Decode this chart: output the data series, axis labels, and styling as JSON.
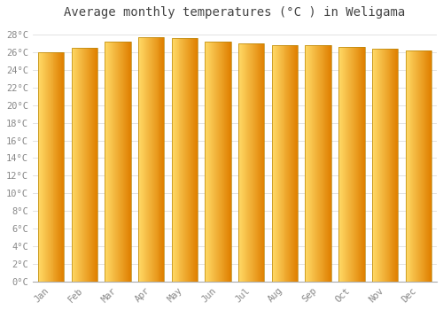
{
  "title": "Average monthly temperatures (°C ) in Weligama",
  "months": [
    "Jan",
    "Feb",
    "Mar",
    "Apr",
    "May",
    "Jun",
    "Jul",
    "Aug",
    "Sep",
    "Oct",
    "Nov",
    "Dec"
  ],
  "values": [
    26.0,
    26.5,
    27.2,
    27.7,
    27.6,
    27.2,
    27.0,
    26.8,
    26.8,
    26.6,
    26.4,
    26.2
  ],
  "ylim": [
    0,
    29
  ],
  "yticks": [
    0,
    2,
    4,
    6,
    8,
    10,
    12,
    14,
    16,
    18,
    20,
    22,
    24,
    26,
    28
  ],
  "bar_color_left": "#FFD966",
  "bar_color_right": "#E08000",
  "bar_edge_color": "#B8860B",
  "background_color": "#FFFFFF",
  "plot_bg_color": "#FFFFFF",
  "grid_color": "#DDDDDD",
  "title_fontsize": 10,
  "tick_fontsize": 7.5,
  "title_color": "#444444",
  "tick_color": "#888888",
  "font_family": "monospace"
}
